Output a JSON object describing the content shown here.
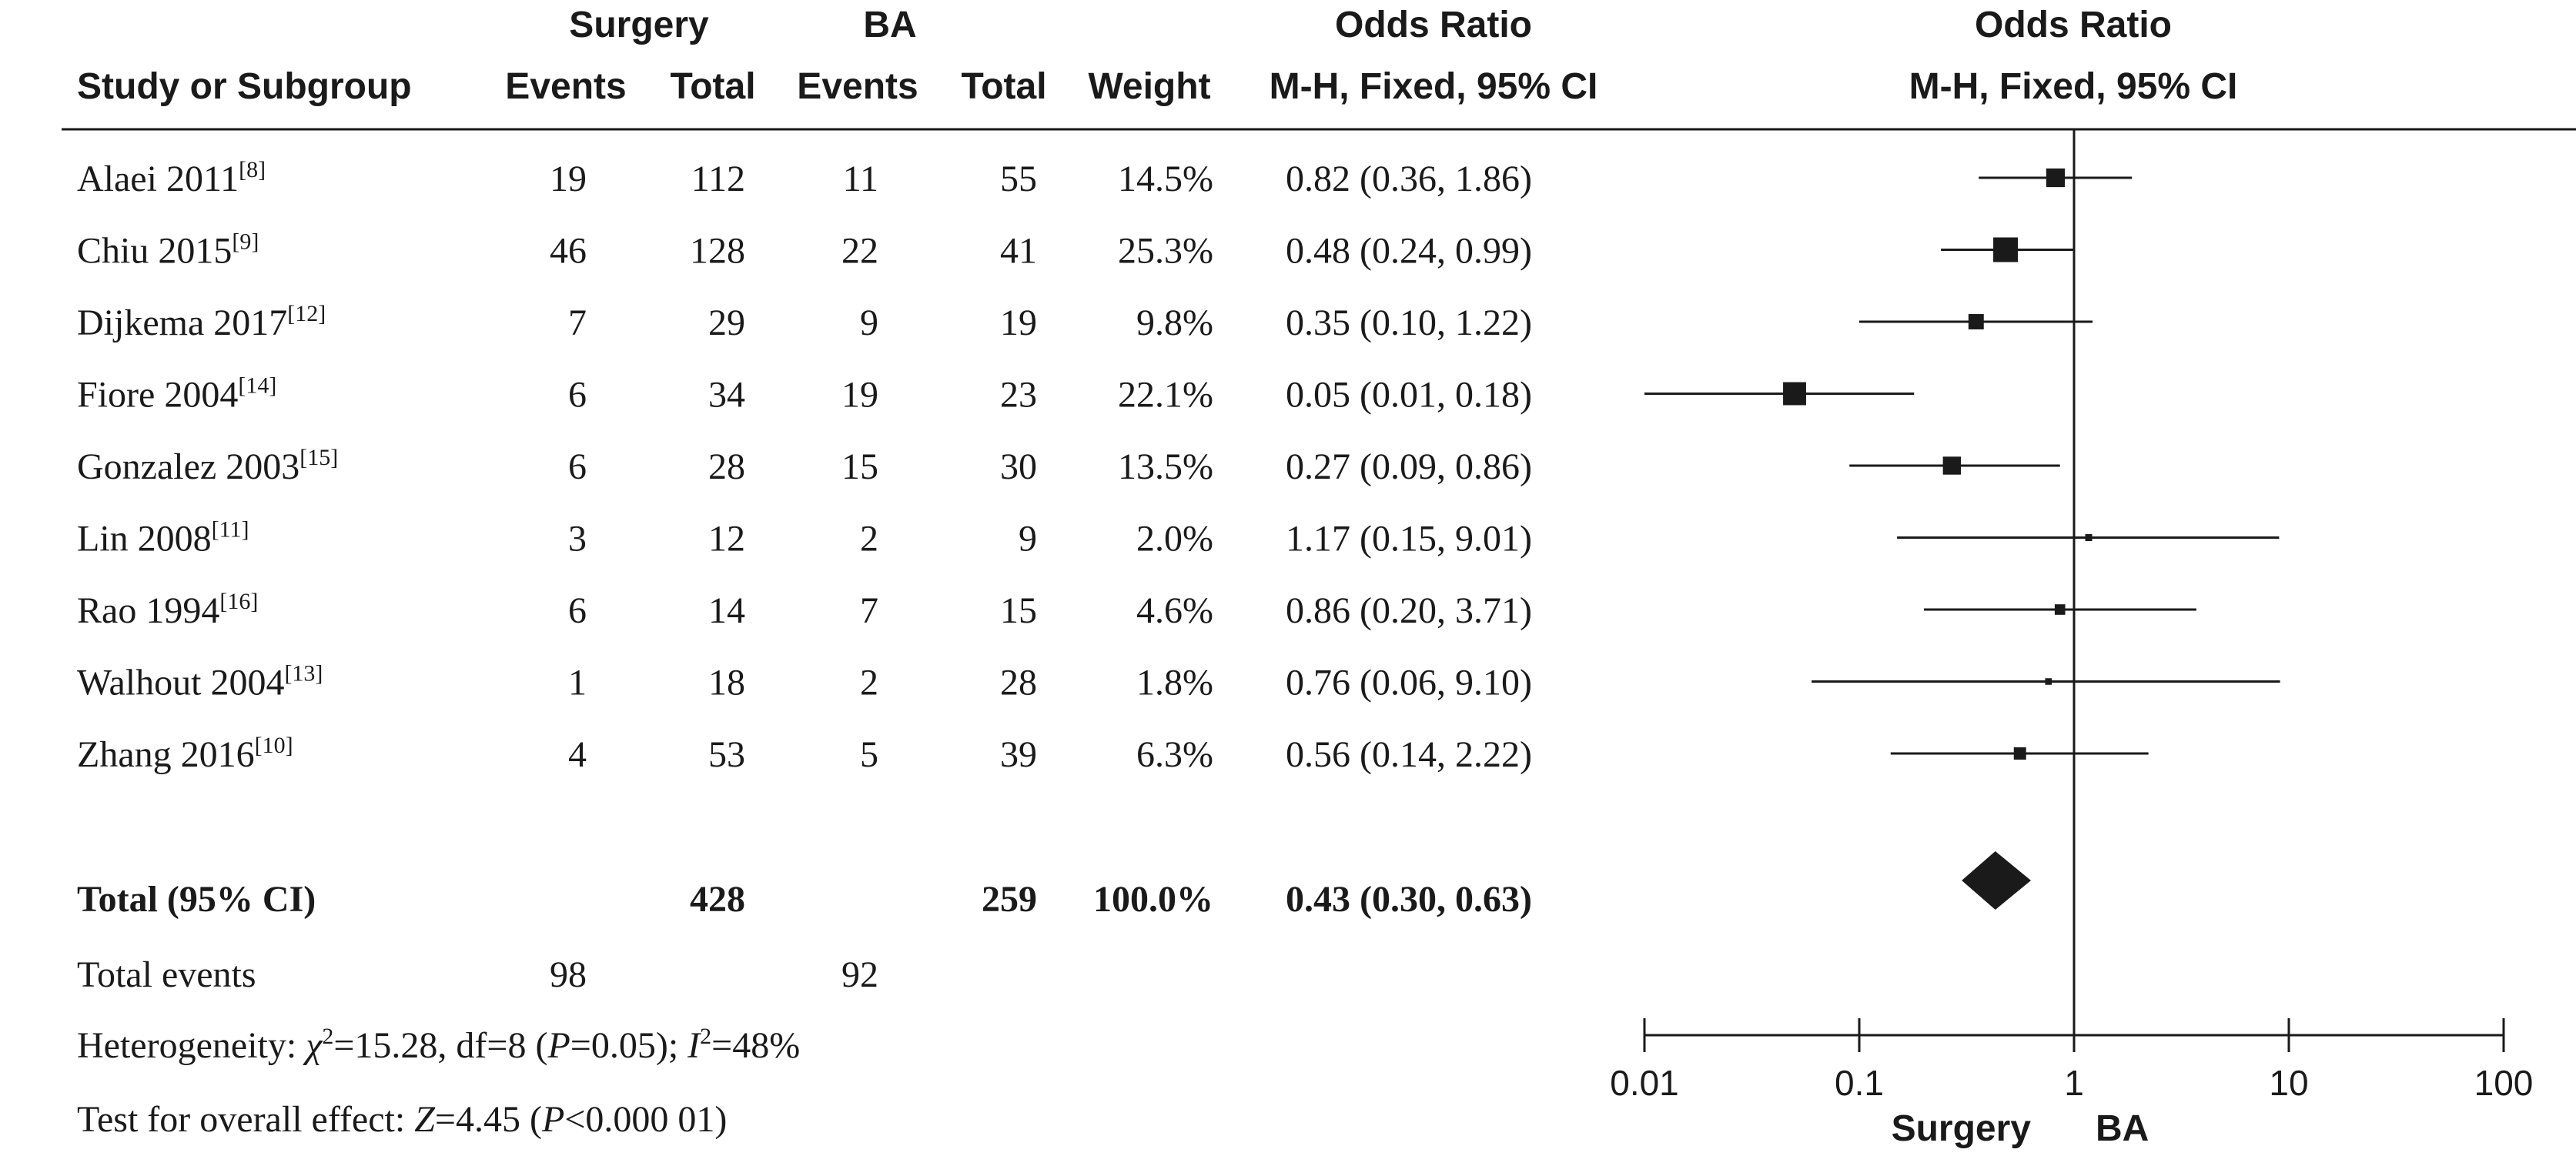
{
  "header": {
    "group1": "Surgery",
    "group2": "BA",
    "or_title": "Odds Ratio",
    "or_method": "M-H, Fixed, 95% CI",
    "plot_title": "Odds Ratio",
    "plot_method": "M-H, Fixed, 95% CI",
    "col_study": "Study or Subgroup",
    "col_events1": "Events",
    "col_total1": "Total",
    "col_events2": "Events",
    "col_total2": "Total",
    "col_weight": "Weight"
  },
  "total": {
    "label": "Total (95% CI)",
    "total1": "428",
    "total2": "259",
    "weight": "100.0%",
    "or_text": "0.43 (0.30, 0.63)"
  },
  "total_events": {
    "label": "Total events",
    "events1": "98",
    "events2": "92"
  },
  "heterogeneity": {
    "prefix": "Heterogeneity: ",
    "chi": "χ",
    "chi_sup": "2",
    "mid1": "=15.28, df=8 (",
    "p": "P",
    "mid2": "=0.05); ",
    "i": "I",
    "i_sup": "2",
    "end": "=48%"
  },
  "overall": {
    "prefix": "Test for overall effect: ",
    "z": "Z",
    "mid": "=4.45 (",
    "p": "P",
    "end": "<0.000 01)"
  },
  "axis": {
    "tick_labels": [
      "0.01",
      "0.1",
      "1",
      "10",
      "100"
    ],
    "left_label": "Surgery",
    "right_label": "BA"
  },
  "chart_data": {
    "type": "forest",
    "x_scale": "log",
    "xlim": [
      0.01,
      100
    ],
    "ticks": [
      0.01,
      0.1,
      1,
      10,
      100
    ],
    "reference_line": 1,
    "studies": [
      {
        "name": "Alaei 2011",
        "ref": "[8]",
        "events1": 19,
        "total1": 112,
        "events2": 11,
        "total2": 55,
        "weight": "14.5%",
        "weight_value": 14.5,
        "or": 0.82,
        "lo": 0.36,
        "hi": 1.86,
        "or_text": "0.82 (0.36, 1.86)"
      },
      {
        "name": "Chiu 2015",
        "ref": "[9]",
        "events1": 46,
        "total1": 128,
        "events2": 22,
        "total2": 41,
        "weight": "25.3%",
        "weight_value": 25.3,
        "or": 0.48,
        "lo": 0.24,
        "hi": 0.99,
        "or_text": "0.48 (0.24, 0.99)"
      },
      {
        "name": "Dijkema 2017",
        "ref": "[12]",
        "events1": 7,
        "total1": 29,
        "events2": 9,
        "total2": 19,
        "weight": "9.8%",
        "weight_value": 9.8,
        "or": 0.35,
        "lo": 0.1,
        "hi": 1.22,
        "or_text": "0.35 (0.10, 1.22)"
      },
      {
        "name": "Fiore 2004",
        "ref": "[14]",
        "events1": 6,
        "total1": 34,
        "events2": 19,
        "total2": 23,
        "weight": "22.1%",
        "weight_value": 22.1,
        "or": 0.05,
        "lo": 0.01,
        "hi": 0.18,
        "or_text": "0.05 (0.01, 0.18)"
      },
      {
        "name": "Gonzalez 2003",
        "ref": "[15]",
        "events1": 6,
        "total1": 28,
        "events2": 15,
        "total2": 30,
        "weight": "13.5%",
        "weight_value": 13.5,
        "or": 0.27,
        "lo": 0.09,
        "hi": 0.86,
        "or_text": "0.27 (0.09, 0.86)"
      },
      {
        "name": "Lin 2008",
        "ref": "[11]",
        "events1": 3,
        "total1": 12,
        "events2": 2,
        "total2": 9,
        "weight": "2.0%",
        "weight_value": 2.0,
        "or": 1.17,
        "lo": 0.15,
        "hi": 9.01,
        "or_text": "1.17 (0.15, 9.01)"
      },
      {
        "name": "Rao 1994",
        "ref": "[16]",
        "events1": 6,
        "total1": 14,
        "events2": 7,
        "total2": 15,
        "weight": "4.6%",
        "weight_value": 4.6,
        "or": 0.86,
        "lo": 0.2,
        "hi": 3.71,
        "or_text": "0.86 (0.20, 3.71)"
      },
      {
        "name": "Walhout 2004",
        "ref": "[13]",
        "events1": 1,
        "total1": 18,
        "events2": 2,
        "total2": 28,
        "weight": "1.8%",
        "weight_value": 1.8,
        "or": 0.76,
        "lo": 0.06,
        "hi": 9.1,
        "or_text": "0.76 (0.06, 9.10)"
      },
      {
        "name": "Zhang 2016",
        "ref": "[10]",
        "events1": 4,
        "total1": 53,
        "events2": 5,
        "total2": 39,
        "weight": "6.3%",
        "weight_value": 6.3,
        "or": 0.56,
        "lo": 0.14,
        "hi": 2.22,
        "or_text": "0.56 (0.14, 2.22)"
      }
    ],
    "pooled": {
      "or": 0.43,
      "lo": 0.3,
      "hi": 0.63
    }
  }
}
